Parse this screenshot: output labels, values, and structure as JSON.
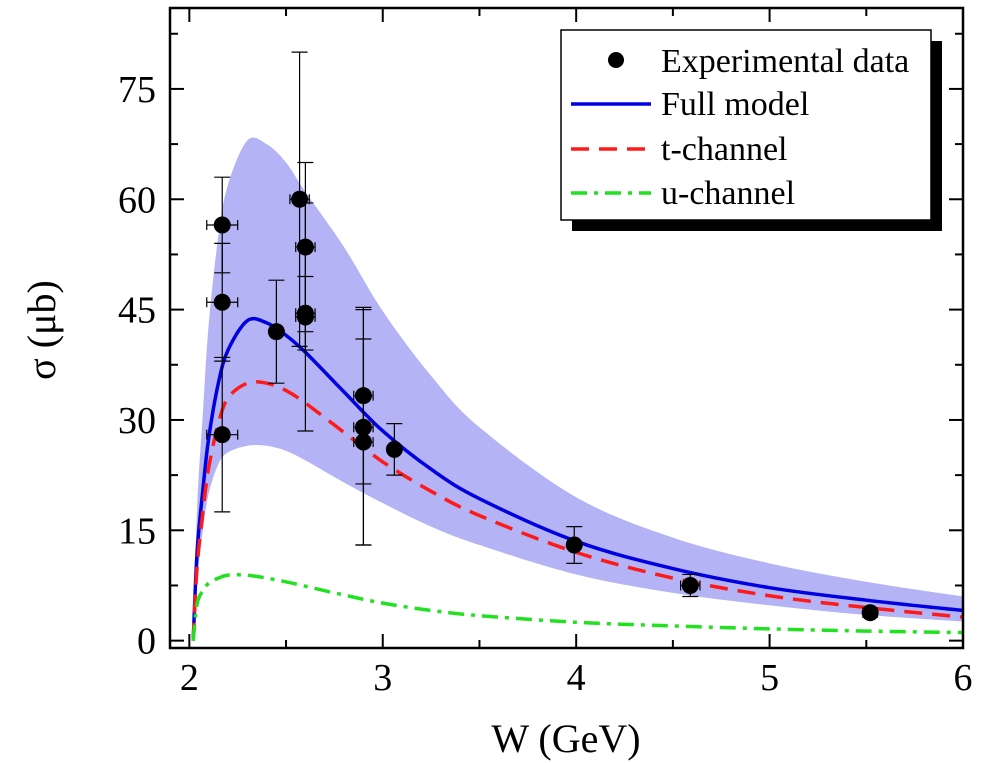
{
  "chart_data": {
    "type": "scatter",
    "title": "",
    "xlabel": "W (GeV)",
    "ylabel": "σ (μb)",
    "xlim": [
      1.9,
      6.0
    ],
    "ylim": [
      -1,
      86
    ],
    "xticks": [
      2,
      3,
      4,
      5,
      6
    ],
    "yticks": [
      0,
      15,
      30,
      45,
      60,
      75
    ],
    "grid": false,
    "legend_position": "top-right",
    "legend": [
      {
        "label": "Experimental data",
        "style": "marker"
      },
      {
        "label": "Full model",
        "style": "solid"
      },
      {
        "label": "t-channel",
        "style": "dashed"
      },
      {
        "label": "u-channel",
        "style": "dashdot"
      }
    ],
    "band": {
      "name": "Full model uncertainty",
      "color": "#b3b3f5",
      "x": [
        2.02,
        2.04,
        2.07,
        2.1,
        2.15,
        2.2,
        2.3,
        2.4,
        2.5,
        2.6,
        2.8,
        3.0,
        3.25,
        3.5,
        4.0,
        4.5,
        5.0,
        5.5,
        6.0
      ],
      "upper": [
        0,
        18.0,
        31.0,
        43.0,
        55.0,
        62.0,
        68.0,
        67.5,
        65.0,
        61.0,
        53.5,
        44.8,
        36.0,
        29.0,
        19.5,
        14.0,
        10.5,
        8.0,
        6.0
      ],
      "lower": [
        0,
        8.0,
        15.0,
        20.0,
        24.0,
        25.6,
        26.5,
        26.5,
        25.8,
        24.5,
        21.5,
        18.7,
        15.5,
        13.0,
        9.0,
        6.5,
        4.8,
        3.5,
        2.6
      ]
    },
    "series": [
      {
        "name": "Full model",
        "color": "#0000e0",
        "style": "solid",
        "x": [
          2.02,
          2.04,
          2.07,
          2.1,
          2.15,
          2.2,
          2.3,
          2.4,
          2.5,
          2.6,
          2.8,
          3.0,
          3.25,
          3.5,
          4.0,
          4.5,
          5.0,
          5.5,
          6.0
        ],
        "y": [
          0,
          12.0,
          20.5,
          27.5,
          35.0,
          39.5,
          43.5,
          43.2,
          41.5,
          39.2,
          33.8,
          28.5,
          23.3,
          19.3,
          13.5,
          9.8,
          7.2,
          5.5,
          4.1
        ]
      },
      {
        "name": "t-channel",
        "color": "#ff1a1a",
        "style": "dashed",
        "x": [
          2.02,
          2.04,
          2.07,
          2.1,
          2.15,
          2.2,
          2.3,
          2.4,
          2.5,
          2.6,
          2.8,
          3.0,
          3.25,
          3.5,
          4.0,
          4.5,
          5.0,
          5.5,
          6.0
        ],
        "y": [
          0,
          10.0,
          17.5,
          23.5,
          29.5,
          33.0,
          35.0,
          35.0,
          34.0,
          32.3,
          28.3,
          24.3,
          20.3,
          17.0,
          12.0,
          8.5,
          6.1,
          4.5,
          3.2
        ]
      },
      {
        "name": "u-channel",
        "color": "#22e022",
        "style": "dashdot",
        "x": [
          2.02,
          2.04,
          2.07,
          2.1,
          2.15,
          2.2,
          2.3,
          2.4,
          2.5,
          2.6,
          2.8,
          3.0,
          3.25,
          3.5,
          4.0,
          4.5,
          5.0,
          5.5,
          6.0
        ],
        "y": [
          0,
          5.0,
          6.8,
          7.8,
          8.5,
          8.9,
          8.9,
          8.5,
          8.0,
          7.4,
          6.2,
          5.1,
          4.1,
          3.4,
          2.5,
          2.0,
          1.6,
          1.3,
          1.1
        ]
      }
    ],
    "points": {
      "name": "Experimental data",
      "color": "#000000",
      "x": [
        2.17,
        2.17,
        2.17,
        2.45,
        2.57,
        2.6,
        2.6,
        2.6,
        2.9,
        2.9,
        2.9,
        3.06,
        3.99,
        4.59,
        5.52
      ],
      "y": [
        56.5,
        46.0,
        28.0,
        42.0,
        60.0,
        53.5,
        44.5,
        44.0,
        33.3,
        29.0,
        27.0,
        26.0,
        13.0,
        7.5,
        3.8
      ],
      "yerr": [
        6.5,
        8.0,
        10.5,
        7.0,
        20.0,
        11.5,
        5.0,
        15.5,
        12.0,
        16.0,
        14.0,
        3.5,
        2.5,
        1.5,
        0.6
      ],
      "xerr": [
        0.08,
        0.08,
        0.08,
        0.0,
        0.05,
        0.05,
        0.05,
        0.05,
        0.05,
        0.05,
        0.05,
        0.0,
        0.0,
        0.05,
        0.0
      ]
    }
  }
}
